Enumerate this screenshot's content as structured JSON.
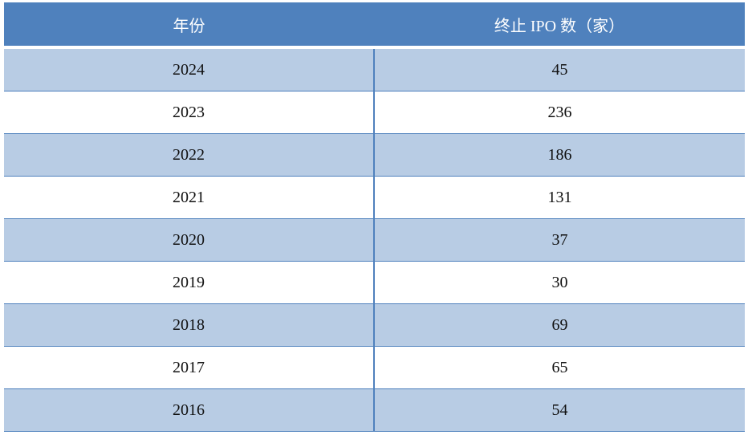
{
  "table": {
    "header": [
      "年份",
      "终止 IPO 数（家）"
    ],
    "rows": [
      [
        "2024",
        "45"
      ],
      [
        "2023",
        "236"
      ],
      [
        "2022",
        "186"
      ],
      [
        "2021",
        "131"
      ],
      [
        "2020",
        "37"
      ],
      [
        "2019",
        "30"
      ],
      [
        "2018",
        "69"
      ],
      [
        "2017",
        "65"
      ],
      [
        "2016",
        "54"
      ]
    ]
  }
}
